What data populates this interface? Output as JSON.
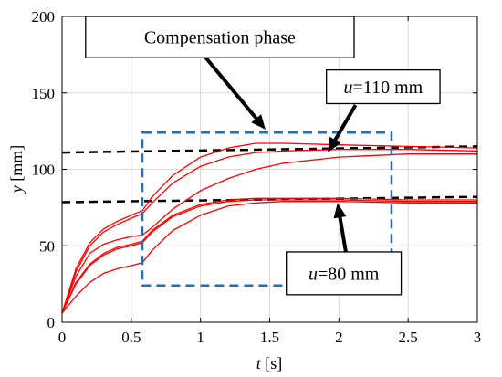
{
  "chart_data": {
    "type": "line",
    "title": "",
    "xlabel": {
      "var": "t",
      "unit": " [s]"
    },
    "ylabel": {
      "var": "y",
      "unit": " [mm]"
    },
    "xlim": [
      0,
      3
    ],
    "ylim": [
      0,
      200
    ],
    "xticks": [
      0,
      0.5,
      1,
      1.5,
      2,
      2.5,
      3
    ],
    "xtick_labels": [
      "0",
      "0.5",
      "1",
      "1.5",
      "2",
      "2.5",
      "3"
    ],
    "yticks": [
      0,
      50,
      100,
      150,
      200
    ],
    "ytick_labels": [
      "0",
      "50",
      "100",
      "150",
      "200"
    ],
    "grid": true,
    "colors": {
      "response": "#ff0000",
      "reference": "#000000",
      "region": "#1f6fc0",
      "grid": "#d9d9d9"
    },
    "reference_lines": [
      {
        "x": [
          0,
          3
        ],
        "y": [
          111,
          115
        ]
      },
      {
        "x": [
          0,
          3
        ],
        "y": [
          78.5,
          82
        ]
      }
    ],
    "series": [
      {
        "x": [
          0,
          0.1,
          0.2,
          0.3,
          0.4,
          0.5,
          0.58,
          0.65,
          0.8,
          1.0,
          1.2,
          1.4,
          1.6,
          2.0,
          2.5,
          3.0
        ],
        "y": [
          6,
          35,
          52,
          61,
          66,
          70,
          73,
          82,
          96,
          108,
          114,
          117,
          117,
          116,
          115,
          114
        ]
      },
      {
        "x": [
          0,
          0.1,
          0.2,
          0.3,
          0.4,
          0.5,
          0.58,
          0.65,
          0.8,
          1.0,
          1.2,
          1.4,
          1.6,
          2.0,
          2.5,
          3.0
        ],
        "y": [
          6,
          33,
          50,
          59,
          64,
          68,
          71,
          78,
          91,
          102,
          108,
          111,
          112,
          113,
          113,
          112
        ]
      },
      {
        "x": [
          0,
          0.1,
          0.2,
          0.3,
          0.4,
          0.5,
          0.58,
          0.65,
          0.8,
          1.0,
          1.2,
          1.4,
          1.6,
          2.0,
          2.5,
          3.0
        ],
        "y": [
          6,
          30,
          45,
          51,
          54,
          56,
          57,
          62,
          74,
          86,
          94,
          100,
          104,
          108,
          110,
          110
        ]
      },
      {
        "x": [
          0,
          0.1,
          0.2,
          0.3,
          0.4,
          0.5,
          0.58,
          0.65,
          0.8,
          1.0,
          1.2,
          1.4,
          1.6,
          2.0,
          2.5,
          3.0
        ],
        "y": [
          6,
          26,
          38,
          45,
          49,
          51,
          53,
          60,
          70,
          77,
          80,
          81,
          81,
          81,
          80,
          80
        ]
      },
      {
        "x": [
          0,
          0.1,
          0.2,
          0.3,
          0.4,
          0.5,
          0.58,
          0.65,
          0.8,
          1.0,
          1.2,
          1.4,
          1.6,
          2.0,
          2.5,
          3.0
        ],
        "y": [
          6,
          25,
          37,
          44,
          48,
          50,
          52,
          59,
          69,
          76,
          79,
          80,
          80,
          80,
          79,
          79
        ]
      },
      {
        "x": [
          0,
          0.1,
          0.2,
          0.3,
          0.4,
          0.5,
          0.58,
          0.65,
          0.8,
          1.0,
          1.2,
          1.4,
          1.6,
          2.0,
          2.5,
          3.0
        ],
        "y": [
          6,
          17,
          26,
          32,
          35,
          37,
          39,
          47,
          60,
          70,
          76,
          78,
          79,
          79,
          78,
          78
        ]
      }
    ],
    "region": {
      "x": [
        0.58,
        2.38
      ],
      "y": [
        24,
        124
      ]
    },
    "annotations": [
      {
        "text": "Compensation phase",
        "box_x": [
          0.17,
          2.11
        ],
        "box_y": [
          173,
          200
        ],
        "arrow_from": [
          1.02,
          175
        ],
        "arrow_to": [
          1.47,
          126
        ]
      },
      {
        "var": "u",
        "text": "=110 mm",
        "box_x": [
          1.91,
          2.73
        ],
        "box_y": [
          143,
          165
        ],
        "arrow_from": [
          2.12,
          142
        ],
        "arrow_to": [
          1.92,
          111
        ]
      },
      {
        "var": "u",
        "text": "=80 mm",
        "box_x": [
          1.62,
          2.45
        ],
        "box_y": [
          18,
          46
        ],
        "arrow_from": [
          2.05,
          46
        ],
        "arrow_to": [
          1.99,
          78
        ]
      }
    ]
  }
}
